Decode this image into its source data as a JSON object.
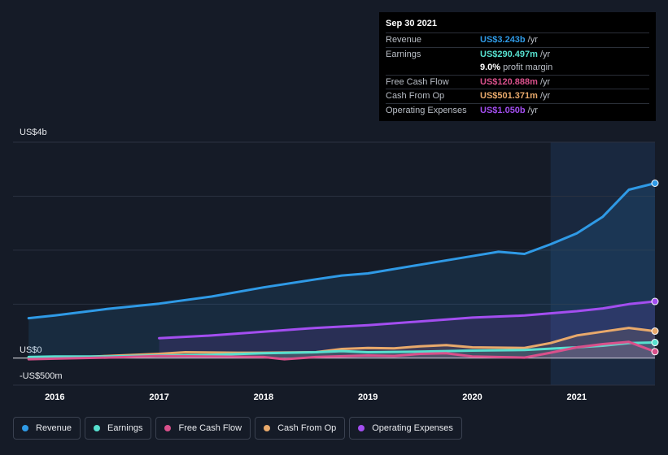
{
  "tooltip": {
    "date": "Sep 30 2021",
    "rows": [
      {
        "label": "Revenue",
        "value": "US$3.243b",
        "unit": "/yr",
        "color": "#2f9ae6"
      },
      {
        "label": "Earnings",
        "value": "US$290.497m",
        "unit": "/yr",
        "color": "#57e0cf"
      },
      {
        "label": "",
        "value": "9.0%",
        "unit": "profit margin",
        "color": "#ffffff"
      },
      {
        "label": "Free Cash Flow",
        "value": "US$120.888m",
        "unit": "/yr",
        "color": "#d9508b"
      },
      {
        "label": "Cash From Op",
        "value": "US$501.371m",
        "unit": "/yr",
        "color": "#e8a96b"
      },
      {
        "label": "Operating Expenses",
        "value": "US$1.050b",
        "unit": "/yr",
        "color": "#a34ef0"
      }
    ]
  },
  "legend": [
    {
      "label": "Revenue",
      "color": "#2f9ae6"
    },
    {
      "label": "Earnings",
      "color": "#57e0cf"
    },
    {
      "label": "Free Cash Flow",
      "color": "#d9508b"
    },
    {
      "label": "Cash From Op",
      "color": "#e8a96b"
    },
    {
      "label": "Operating Expenses",
      "color": "#a34ef0"
    }
  ],
  "chart_data": {
    "type": "line",
    "y_unit_labels": {
      "top": "US$4b",
      "zero": "US$0",
      "bottom": "-US$500m"
    },
    "ylim": [
      -0.5,
      4.0
    ],
    "xlim": [
      2015.6,
      2021.75
    ],
    "x_ticks": [
      "2016",
      "2017",
      "2018",
      "2019",
      "2020",
      "2021"
    ],
    "highlight_from": 2020.75,
    "series": [
      {
        "name": "Revenue",
        "color": "#2f9ae6",
        "fill": true,
        "points": [
          [
            2015.75,
            0.74
          ],
          [
            2016.0,
            0.79
          ],
          [
            2016.5,
            0.91
          ],
          [
            2017.0,
            1.01
          ],
          [
            2017.5,
            1.14
          ],
          [
            2018.0,
            1.31
          ],
          [
            2018.5,
            1.46
          ],
          [
            2018.75,
            1.53
          ],
          [
            2019.0,
            1.57
          ],
          [
            2019.5,
            1.73
          ],
          [
            2020.0,
            1.89
          ],
          [
            2020.25,
            1.97
          ],
          [
            2020.5,
            1.93
          ],
          [
            2020.75,
            2.11
          ],
          [
            2021.0,
            2.31
          ],
          [
            2021.25,
            2.62
          ],
          [
            2021.5,
            3.12
          ],
          [
            2021.75,
            3.24
          ]
        ]
      },
      {
        "name": "Operating Expenses",
        "color": "#a34ef0",
        "fill": true,
        "points": [
          [
            2017.0,
            0.37
          ],
          [
            2017.5,
            0.42
          ],
          [
            2018.0,
            0.49
          ],
          [
            2018.5,
            0.56
          ],
          [
            2019.0,
            0.61
          ],
          [
            2019.5,
            0.68
          ],
          [
            2020.0,
            0.75
          ],
          [
            2020.5,
            0.79
          ],
          [
            2021.0,
            0.87
          ],
          [
            2021.25,
            0.92
          ],
          [
            2021.5,
            1.0
          ],
          [
            2021.75,
            1.05
          ]
        ]
      },
      {
        "name": "Cash From Op",
        "color": "#e8a96b",
        "fill": true,
        "points": [
          [
            2015.75,
            0.01
          ],
          [
            2016.0,
            0.0
          ],
          [
            2016.5,
            0.04
          ],
          [
            2017.0,
            0.08
          ],
          [
            2017.25,
            0.11
          ],
          [
            2017.75,
            0.1
          ],
          [
            2018.0,
            0.1
          ],
          [
            2018.5,
            0.11
          ],
          [
            2018.75,
            0.17
          ],
          [
            2019.0,
            0.19
          ],
          [
            2019.25,
            0.18
          ],
          [
            2019.5,
            0.22
          ],
          [
            2019.75,
            0.24
          ],
          [
            2020.0,
            0.2
          ],
          [
            2020.5,
            0.19
          ],
          [
            2020.75,
            0.28
          ],
          [
            2021.0,
            0.42
          ],
          [
            2021.25,
            0.49
          ],
          [
            2021.5,
            0.56
          ],
          [
            2021.75,
            0.5
          ]
        ]
      },
      {
        "name": "Earnings",
        "color": "#57e0cf",
        "fill": true,
        "points": [
          [
            2015.75,
            0.02
          ],
          [
            2016.0,
            0.03
          ],
          [
            2016.5,
            0.03
          ],
          [
            2017.0,
            0.05
          ],
          [
            2017.5,
            0.06
          ],
          [
            2018.0,
            0.09
          ],
          [
            2018.5,
            0.11
          ],
          [
            2018.75,
            0.13
          ],
          [
            2019.0,
            0.11
          ],
          [
            2019.5,
            0.12
          ],
          [
            2020.0,
            0.14
          ],
          [
            2020.5,
            0.15
          ],
          [
            2021.0,
            0.2
          ],
          [
            2021.25,
            0.23
          ],
          [
            2021.5,
            0.28
          ],
          [
            2021.75,
            0.29
          ]
        ]
      },
      {
        "name": "Free Cash Flow",
        "color": "#d9508b",
        "fill": true,
        "points": [
          [
            2015.75,
            -0.02
          ],
          [
            2016.0,
            -0.01
          ],
          [
            2016.5,
            0.01
          ],
          [
            2017.0,
            0.04
          ],
          [
            2017.5,
            0.03
          ],
          [
            2018.0,
            0.02
          ],
          [
            2018.2,
            -0.02
          ],
          [
            2018.5,
            0.02
          ],
          [
            2019.0,
            0.05
          ],
          [
            2019.25,
            0.04
          ],
          [
            2019.5,
            0.08
          ],
          [
            2019.75,
            0.09
          ],
          [
            2020.0,
            0.03
          ],
          [
            2020.5,
            0.01
          ],
          [
            2020.75,
            0.1
          ],
          [
            2021.0,
            0.2
          ],
          [
            2021.25,
            0.26
          ],
          [
            2021.5,
            0.3
          ],
          [
            2021.75,
            0.12
          ]
        ]
      }
    ]
  }
}
